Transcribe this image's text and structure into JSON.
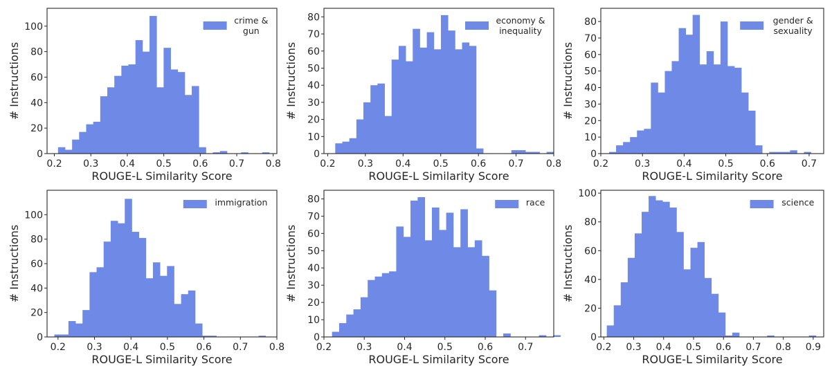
{
  "style": {
    "bar_color": "#6F8AE6",
    "frame_color": "#262626",
    "background": "#FFFFFF"
  },
  "chart_data": [
    {
      "type": "bar",
      "legend": "crime &\ngun",
      "legend_loc": "top-right",
      "xlabel": "ROUGE-L Similarity Score",
      "ylabel": "# Instructions",
      "xlim": [
        0.18,
        0.81
      ],
      "ylim": [
        0,
        114
      ],
      "xticks": [
        0.2,
        0.3,
        0.4,
        0.5,
        0.6,
        0.7,
        0.8
      ],
      "yticks": [
        0,
        20,
        40,
        60,
        80,
        100
      ],
      "bin_start": 0.21,
      "bin_width": 0.0193,
      "values": [
        5,
        3,
        11,
        17,
        23,
        25,
        45,
        52,
        61,
        69,
        70,
        89,
        80,
        108,
        52,
        83,
        66,
        64,
        46,
        53,
        5,
        0,
        1,
        2,
        0,
        0,
        1,
        0,
        0,
        1
      ]
    },
    {
      "type": "bar",
      "legend": "economy &\ninequality",
      "legend_loc": "top-right",
      "xlabel": "ROUGE-L Similarity Score",
      "ylabel": "# Instructions",
      "xlim": [
        0.19,
        0.8
      ],
      "ylim": [
        0,
        85
      ],
      "xticks": [
        0.2,
        0.3,
        0.4,
        0.5,
        0.6,
        0.7,
        0.8
      ],
      "yticks": [
        0,
        10,
        20,
        30,
        40,
        50,
        60,
        70,
        80
      ],
      "bin_start": 0.22,
      "bin_width": 0.0187,
      "values": [
        6,
        7,
        9,
        20,
        30,
        40,
        41,
        22,
        55,
        63,
        54,
        73,
        62,
        71,
        61,
        81,
        72,
        61,
        65,
        63,
        3,
        0,
        0,
        0,
        0,
        2,
        2,
        1,
        1,
        0,
        1
      ]
    },
    {
      "type": "bar",
      "legend": "gender &\nsexuality",
      "legend_loc": "top-right",
      "xlabel": "ROUGE-L Similarity Score",
      "ylabel": "# Instructions",
      "xlim": [
        0.2,
        0.735
      ],
      "ylim": [
        0,
        88
      ],
      "xticks": [
        0.2,
        0.3,
        0.4,
        0.5,
        0.6,
        0.7
      ],
      "yticks": [
        0,
        10,
        20,
        30,
        40,
        50,
        60,
        70,
        80
      ],
      "bin_start": 0.22,
      "bin_width": 0.0167,
      "values": [
        1,
        5,
        7,
        10,
        14,
        15,
        43,
        37,
        50,
        56,
        76,
        72,
        84,
        54,
        62,
        54,
        80,
        53,
        52,
        37,
        26,
        5,
        0,
        1,
        1,
        1,
        2,
        0,
        1
      ]
    },
    {
      "type": "bar",
      "legend": "immigration",
      "legend_loc": "top-right",
      "xlabel": "ROUGE-L Similarity Score",
      "ylabel": "# Instructions",
      "xlim": [
        0.17,
        0.8
      ],
      "ylim": [
        0,
        120
      ],
      "xticks": [
        0.2,
        0.3,
        0.4,
        0.5,
        0.6,
        0.7,
        0.8
      ],
      "yticks": [
        0,
        20,
        40,
        60,
        80,
        100
      ],
      "bin_start": 0.19,
      "bin_width": 0.0193,
      "values": [
        2,
        2,
        13,
        11,
        22,
        53,
        57,
        78,
        95,
        93,
        113,
        86,
        81,
        48,
        61,
        50,
        58,
        27,
        35,
        38,
        11,
        1,
        1,
        0,
        0,
        0,
        0,
        0,
        0,
        1
      ]
    },
    {
      "type": "bar",
      "legend": "race",
      "legend_loc": "top-right",
      "xlabel": "ROUGE-L Similarity Score",
      "ylabel": "# Instructions",
      "xlim": [
        0.2,
        0.77
      ],
      "ylim": [
        0,
        85
      ],
      "xticks": [
        0.2,
        0.3,
        0.4,
        0.5,
        0.6,
        0.7
      ],
      "yticks": [
        0,
        10,
        20,
        30,
        40,
        50,
        60,
        70,
        80
      ],
      "bin_start": 0.22,
      "bin_width": 0.0177,
      "values": [
        3,
        8,
        13,
        16,
        23,
        33,
        35,
        37,
        38,
        64,
        58,
        79,
        81,
        56,
        75,
        62,
        72,
        52,
        74,
        52,
        56,
        47,
        27,
        0,
        2,
        0,
        0,
        0,
        0,
        1,
        0,
        1
      ]
    },
    {
      "type": "bar",
      "legend": "science",
      "legend_loc": "top-right",
      "xlabel": "ROUGE-L Similarity Score",
      "ylabel": "# Instructions",
      "xlim": [
        0.19,
        0.935
      ],
      "ylim": [
        0,
        102
      ],
      "xticks": [
        0.2,
        0.3,
        0.4,
        0.5,
        0.6,
        0.7,
        0.8,
        0.9
      ],
      "yticks": [
        0,
        20,
        40,
        60,
        80,
        100
      ],
      "bin_start": 0.21,
      "bin_width": 0.0233,
      "values": [
        8,
        22,
        38,
        55,
        72,
        87,
        98,
        95,
        94,
        90,
        73,
        47,
        62,
        66,
        41,
        30,
        17,
        1,
        3,
        0,
        0,
        0,
        0,
        1,
        0,
        0,
        0,
        0,
        0,
        1
      ]
    }
  ]
}
